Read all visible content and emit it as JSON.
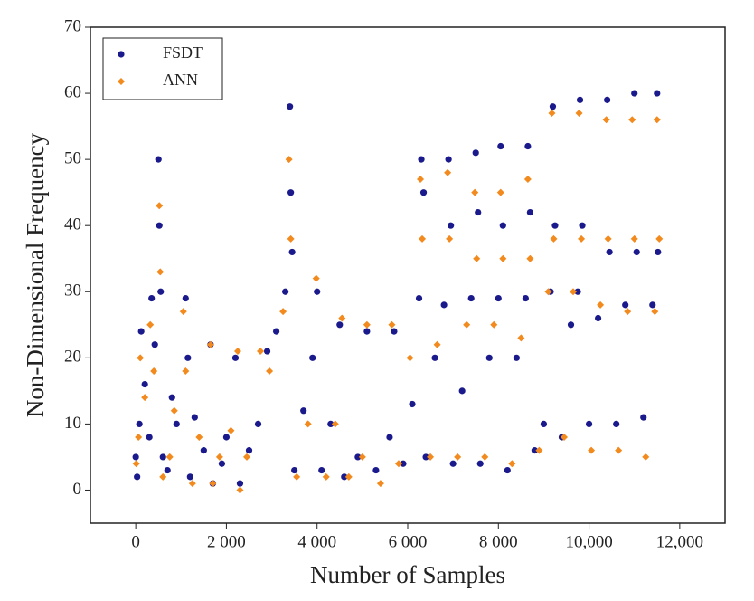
{
  "chart_data": {
    "type": "scatter",
    "xlabel": "Number of Samples",
    "ylabel": "Non-Dimensional Frequency",
    "xlim": [
      -1000,
      13000
    ],
    "ylim": [
      -5,
      70
    ],
    "xticks": [
      0,
      {
        "value": 2000,
        "label": "2 000"
      },
      {
        "value": 4000,
        "label": "4 000"
      },
      {
        "value": 6000,
        "label": "6 000"
      },
      {
        "value": 8000,
        "label": "8 000"
      },
      {
        "value": 10000,
        "label": "10,000"
      },
      {
        "value": 12000,
        "label": "12,000"
      }
    ],
    "yticks": [
      0,
      10,
      20,
      30,
      40,
      50,
      60,
      70
    ],
    "legend": "upper left",
    "series": [
      {
        "name": "FSDT",
        "color": "#1a1a8c",
        "marker": "circle",
        "x": [
          0,
          30,
          80,
          120,
          200,
          300,
          350,
          420,
          500,
          520,
          550,
          600,
          700,
          800,
          900,
          1100,
          1150,
          1200,
          1300,
          1500,
          1650,
          1700,
          1900,
          2000,
          2200,
          2300,
          2500,
          2700,
          2900,
          3100,
          3300,
          3400,
          3420,
          3450,
          3500,
          3700,
          3900,
          4000,
          4100,
          4300,
          4500,
          4600,
          4900,
          5100,
          5300,
          5600,
          5700,
          5900,
          6100,
          6250,
          6300,
          6350,
          6400,
          6600,
          6800,
          6900,
          6950,
          7000,
          7200,
          7400,
          7500,
          7550,
          7600,
          7800,
          8000,
          8050,
          8100,
          8200,
          8400,
          8600,
          8650,
          8700,
          8800,
          9000,
          9150,
          9200,
          9250,
          9400,
          9600,
          9750,
          9800,
          9850,
          10000,
          10200,
          10400,
          10450,
          10600,
          10800,
          11000,
          11050,
          11200,
          11400,
          11500,
          11520
        ],
        "values": [
          5,
          2,
          10,
          24,
          16,
          8,
          29,
          22,
          50,
          40,
          30,
          5,
          3,
          14,
          10,
          29,
          20,
          2,
          11,
          6,
          22,
          1,
          4,
          8,
          20,
          1,
          6,
          10,
          21,
          24,
          30,
          58,
          45,
          36,
          3,
          12,
          20,
          30,
          3,
          10,
          25,
          2,
          5,
          24,
          3,
          8,
          24,
          4,
          13,
          29,
          50,
          45,
          5,
          20,
          28,
          50,
          40,
          4,
          15,
          29,
          51,
          42,
          4,
          20,
          29,
          52,
          40,
          3,
          20,
          29,
          52,
          42,
          6,
          10,
          30,
          58,
          40,
          8,
          25,
          30,
          59,
          40,
          10,
          26,
          59,
          36,
          10,
          28,
          60,
          36,
          11,
          28,
          60,
          36
        ]
      },
      {
        "name": "ANN",
        "color": "#f28a1e",
        "marker": "diamond",
        "x": [
          10,
          60,
          100,
          200,
          320,
          400,
          520,
          540,
          600,
          750,
          850,
          1050,
          1100,
          1250,
          1400,
          1650,
          1700,
          1850,
          2100,
          2250,
          2300,
          2450,
          2750,
          2950,
          3250,
          3380,
          3420,
          3550,
          3800,
          3980,
          4200,
          4400,
          4550,
          4700,
          5000,
          5100,
          5400,
          5650,
          5800,
          6050,
          6280,
          6320,
          6500,
          6650,
          6880,
          6920,
          7100,
          7300,
          7480,
          7520,
          7700,
          7900,
          8050,
          8100,
          8300,
          8500,
          8650,
          8700,
          8900,
          9100,
          9180,
          9220,
          9450,
          9650,
          9780,
          9830,
          10050,
          10250,
          10380,
          10420,
          10650,
          10850,
          10950,
          11000,
          11250,
          11450,
          11500,
          11550
        ],
        "values": [
          4,
          8,
          20,
          14,
          25,
          18,
          43,
          33,
          2,
          5,
          12,
          27,
          18,
          1,
          8,
          22,
          1,
          5,
          9,
          21,
          0,
          5,
          21,
          18,
          27,
          50,
          38,
          2,
          10,
          32,
          2,
          10,
          26,
          2,
          5,
          25,
          1,
          25,
          4,
          20,
          47,
          38,
          5,
          22,
          48,
          38,
          5,
          25,
          45,
          35,
          5,
          25,
          45,
          35,
          4,
          23,
          47,
          35,
          6,
          30,
          57,
          38,
          8,
          30,
          57,
          38,
          6,
          28,
          56,
          38,
          6,
          27,
          56,
          38,
          5,
          27,
          56,
          38
        ]
      }
    ]
  }
}
